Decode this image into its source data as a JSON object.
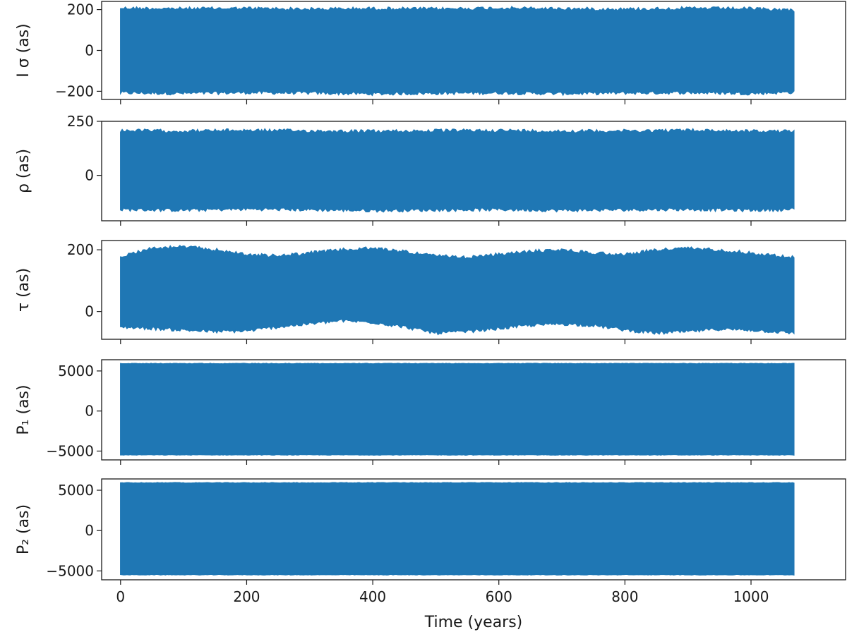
{
  "chart_data": {
    "type": "line",
    "layout": "stacked-subplots",
    "xlabel": "Time (years)",
    "xlim": [
      -30,
      1150
    ],
    "xticks": [
      0,
      200,
      400,
      600,
      800,
      1000
    ],
    "x_range": [
      0,
      1068
    ],
    "series_color": "#1f77b4",
    "panels": [
      {
        "ylabel": "I σ (as)",
        "ylim": [
          -240,
          240
        ],
        "yticks": [
          -200,
          0,
          200
        ],
        "envelope": {
          "x": [
            0,
            100,
            200,
            300,
            400,
            500,
            600,
            700,
            800,
            900,
            1000,
            1068
          ],
          "upper": [
            215,
            212,
            214,
            210,
            213,
            211,
            215,
            212,
            210,
            214,
            212,
            205
          ],
          "lower": [
            -215,
            -218,
            -214,
            -216,
            -220,
            -217,
            -215,
            -219,
            -216,
            -214,
            -218,
            -212
          ]
        }
      },
      {
        "ylabel": "ρ (as)",
        "ylim": [
          -210,
          250
        ],
        "yticks": [
          0,
          250
        ],
        "envelope": {
          "x": [
            0,
            100,
            200,
            300,
            400,
            500,
            600,
            700,
            800,
            900,
            1000,
            1068
          ],
          "upper": [
            215,
            212,
            216,
            213,
            211,
            214,
            215,
            212,
            213,
            216,
            212,
            210
          ],
          "lower": [
            -165,
            -168,
            -163,
            -166,
            -170,
            -167,
            -165,
            -169,
            -166,
            -164,
            -168,
            -165
          ]
        }
      },
      {
        "ylabel": "τ (as)",
        "ylim": [
          -90,
          230
        ],
        "yticks": [
          0,
          200
        ],
        "envelope": {
          "x": [
            0,
            50,
            100,
            150,
            200,
            250,
            300,
            350,
            400,
            450,
            500,
            550,
            600,
            650,
            700,
            750,
            800,
            850,
            900,
            950,
            1000,
            1068
          ],
          "upper": [
            185,
            210,
            215,
            205,
            190,
            185,
            195,
            205,
            210,
            200,
            185,
            180,
            190,
            200,
            205,
            195,
            190,
            205,
            210,
            205,
            195,
            180
          ],
          "lower": [
            -55,
            -60,
            -65,
            -70,
            -68,
            -55,
            -45,
            -35,
            -40,
            -55,
            -75,
            -70,
            -60,
            -50,
            -45,
            -50,
            -65,
            -75,
            -70,
            -62,
            -65,
            -75
          ]
        }
      },
      {
        "ylabel": "P₁ (as)",
        "ylim": [
          -6100,
          6400
        ],
        "yticks": [
          -5000,
          0,
          5000
        ],
        "envelope": {
          "x": [
            0,
            1068
          ],
          "upper": [
            5950,
            5950
          ],
          "lower": [
            -5500,
            -5500
          ]
        }
      },
      {
        "ylabel": "P₂ (as)",
        "ylim": [
          -6100,
          6400
        ],
        "yticks": [
          -5000,
          0,
          5000
        ],
        "envelope": {
          "x": [
            0,
            1068
          ],
          "upper": [
            5950,
            5950
          ],
          "lower": [
            -5500,
            -5500
          ]
        }
      }
    ]
  }
}
